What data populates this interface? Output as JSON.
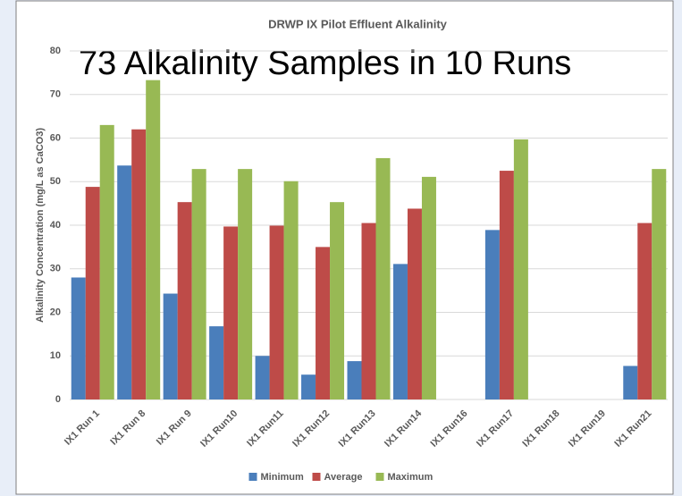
{
  "chart_data": {
    "type": "bar",
    "title": "DRWP IX Pilot Effluent Alkalinity",
    "annotation": "73 Alkalinity Samples in 10 Runs",
    "y_label": "Alkalinity Concentration (mg/L as CaCO3)",
    "categories": [
      "IX1 Run 1",
      "IX1 Run 8",
      "IX1 Run 9",
      "IX1 Run10",
      "IX1 Run11",
      "IX1 Run12",
      "IX1 Run13",
      "IX1 Run14",
      "IX1 Run16",
      "IX1 Run17",
      "IX1 Run18",
      "IX1 Run19",
      "IX1 Run21"
    ],
    "series": [
      {
        "name": "Minimum",
        "color": "#4a7ebb",
        "values": [
          28,
          53.7,
          24.3,
          16.8,
          10,
          5.7,
          8.8,
          31.1,
          null,
          38.9,
          null,
          null,
          7.7
        ]
      },
      {
        "name": "Average",
        "color": "#be4b48",
        "values": [
          48.8,
          62,
          45.3,
          39.7,
          39.9,
          35,
          40.5,
          43.8,
          null,
          52.5,
          null,
          null,
          40.5
        ]
      },
      {
        "name": "Maximum",
        "color": "#98b954",
        "values": [
          63,
          73.3,
          52.9,
          52.9,
          50.1,
          45.3,
          55.4,
          51.1,
          null,
          59.7,
          null,
          null,
          52.9
        ]
      }
    ],
    "ylim": [
      0,
      80
    ],
    "yticks": [
      0,
      10,
      20,
      30,
      40,
      50,
      60,
      70,
      80
    ],
    "grid": true,
    "legend": "bottom"
  }
}
